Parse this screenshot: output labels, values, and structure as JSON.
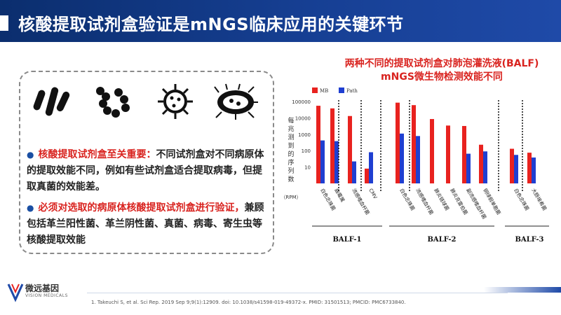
{
  "header": {
    "title": "核酸提取试剂盒验证是mNGS临床应用的关键环节"
  },
  "bullets": [
    {
      "highlight": "核酸提取试剂盒至关重要：",
      "text": "不同试剂盒对不同病原体的提取效能不同，例如有些试剂盒适合提取病毒，但提取真菌的效能差。"
    },
    {
      "highlight": "必须对选取的病原体核酸提取试剂盒进行验证，",
      "text": "兼顾包括革兰阳性菌、革兰阴性菌、真菌、病毒、寄生虫等核酸提取效能"
    }
  ],
  "icons": [
    "rod-bacteria-icon",
    "cocci-chain-icon",
    "virus-icon",
    "parasite-icon"
  ],
  "chart_title": {
    "line1": "两种不同的提取试剂盒对肺泡灌洗液(BALF)",
    "line2": "mNGS微生物检测效能不同"
  },
  "chart_data": {
    "type": "bar",
    "ylabel": "每兆测到的序列数",
    "yunit": "（RPM）",
    "yscale": "log",
    "ylim": [
      1,
      100000
    ],
    "yticks": [
      "100000",
      "10000",
      "1000",
      "100",
      "10"
    ],
    "legend": [
      "MB",
      "Path"
    ],
    "legend_position": "top-left",
    "colors": {
      "MB": "#e8221f",
      "Path": "#1f3fd1"
    },
    "categories": [
      "白色念珠菌",
      "曲霉属",
      "流感嗜血杆菌",
      "CMV",
      "白色念珠菌",
      "流感嗜血杆菌",
      "肺炎链球菌",
      "肺炎克雷伯菌",
      "副流感嗜血杆菌",
      "铜绿假单胞菌",
      "白色念珠菌",
      "大肠埃希菌"
    ],
    "series": [
      {
        "name": "MB",
        "values": [
          55000,
          38000,
          13000,
          8,
          85000,
          60000,
          8500,
          3400,
          3200,
          230,
          130,
          75
        ]
      },
      {
        "name": "Path",
        "values": [
          420,
          380,
          22,
          80,
          1100,
          780,
          null,
          null,
          65,
          90,
          55,
          38
        ]
      }
    ],
    "groups": [
      {
        "label": "BALF-1",
        "count": 4
      },
      {
        "label": "BALF-2",
        "count": 6
      },
      {
        "label": "BALF-3",
        "count": 2
      }
    ]
  },
  "logo": {
    "name": "微远基因",
    "sub": "VISION MEDICALS"
  },
  "reference": "1. Takeuchi S, et al. Sci Rep. 2019 Sep 9;9(1):12909. doi: 10.1038/s41598-019-49372-x. PMID: 31501513; PMCID: PMC6733840."
}
